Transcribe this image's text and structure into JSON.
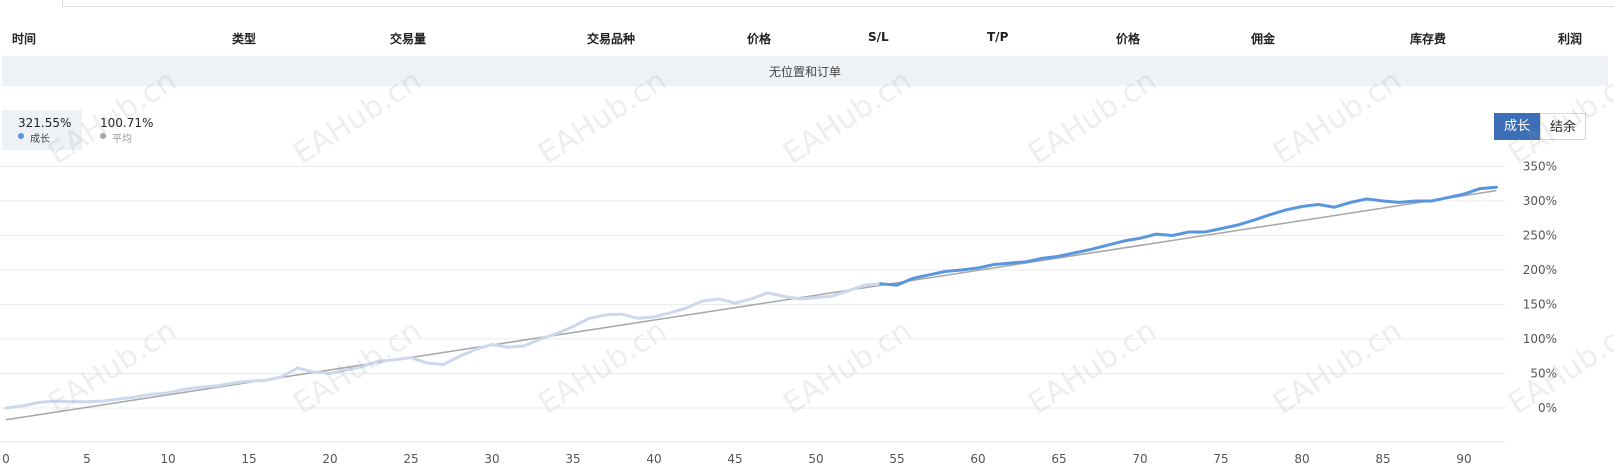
{
  "table": {
    "headers": [
      "时间",
      "类型",
      "交易量",
      "交易品种",
      "价格",
      "S/L",
      "T/P",
      "价格",
      "佣金",
      "库存费",
      "利润"
    ],
    "empty_message": "无位置和订单"
  },
  "legend": {
    "growth": {
      "value": "321.55%",
      "name": "成长",
      "color": "#5a96e0"
    },
    "average": {
      "value": "100.71%",
      "name": "平均",
      "color": "#a6a6a6"
    }
  },
  "toggles": {
    "growth": "成长",
    "balance": "结余"
  },
  "watermark": "EAHub.cn",
  "colors": {
    "growth_line": "#5a96e0",
    "growth_line_faded": "#cdd8ee",
    "trend_line": "#a6a6a6",
    "active_toggle": "#3d6fb8"
  },
  "chart_data": {
    "type": "line",
    "x_ticks": [
      0,
      5,
      10,
      15,
      20,
      25,
      30,
      35,
      40,
      45,
      50,
      55,
      60,
      65,
      70,
      75,
      80,
      85,
      90
    ],
    "y_ticks": [
      "0%",
      "50%",
      "100%",
      "150%",
      "200%",
      "250%",
      "300%",
      "350%"
    ],
    "ylim": [
      -50,
      350
    ],
    "xlim": [
      0,
      92
    ],
    "grid": "horizontal",
    "series": [
      {
        "values": [
          [
            0,
            0
          ],
          [
            1,
            3
          ],
          [
            2,
            8
          ],
          [
            3,
            10
          ],
          [
            4,
            9
          ],
          [
            5,
            9
          ],
          [
            6,
            10
          ],
          [
            7,
            13
          ],
          [
            8,
            16
          ],
          [
            9,
            20
          ],
          [
            10,
            22
          ],
          [
            11,
            27
          ],
          [
            12,
            30
          ],
          [
            13,
            32
          ],
          [
            14,
            36
          ],
          [
            15,
            39
          ],
          [
            16,
            40
          ],
          [
            17,
            45
          ],
          [
            18,
            58
          ],
          [
            19,
            52
          ],
          [
            20,
            50
          ],
          [
            21,
            55
          ],
          [
            22,
            60
          ],
          [
            23,
            68
          ],
          [
            24,
            70
          ],
          [
            25,
            73
          ],
          [
            26,
            65
          ],
          [
            27,
            63
          ],
          [
            28,
            75
          ],
          [
            29,
            85
          ],
          [
            30,
            92
          ],
          [
            31,
            88
          ],
          [
            32,
            90
          ],
          [
            33,
            100
          ],
          [
            34,
            108
          ],
          [
            35,
            118
          ],
          [
            36,
            130
          ],
          [
            37,
            135
          ],
          [
            38,
            136
          ],
          [
            39,
            130
          ],
          [
            40,
            132
          ],
          [
            41,
            138
          ],
          [
            42,
            145
          ],
          [
            43,
            155
          ],
          [
            44,
            158
          ],
          [
            45,
            152
          ],
          [
            46,
            158
          ],
          [
            47,
            167
          ],
          [
            48,
            162
          ],
          [
            49,
            158
          ],
          [
            50,
            160
          ],
          [
            51,
            162
          ],
          [
            52,
            170
          ],
          [
            53,
            178
          ],
          [
            54,
            180
          ],
          [
            55,
            178
          ],
          [
            56,
            188
          ],
          [
            57,
            193
          ],
          [
            58,
            198
          ],
          [
            59,
            200
          ],
          [
            60,
            203
          ],
          [
            61,
            208
          ],
          [
            62,
            210
          ],
          [
            63,
            212
          ],
          [
            64,
            217
          ],
          [
            65,
            220
          ],
          [
            66,
            225
          ],
          [
            67,
            230
          ],
          [
            68,
            236
          ],
          [
            69,
            242
          ],
          [
            70,
            246
          ],
          [
            71,
            252
          ],
          [
            72,
            250
          ],
          [
            73,
            255
          ],
          [
            74,
            255
          ],
          [
            75,
            260
          ],
          [
            76,
            265
          ],
          [
            77,
            272
          ],
          [
            78,
            280
          ],
          [
            79,
            287
          ],
          [
            80,
            292
          ],
          [
            81,
            295
          ],
          [
            82,
            291
          ],
          [
            83,
            298
          ],
          [
            84,
            303
          ],
          [
            85,
            300
          ],
          [
            86,
            298
          ],
          [
            87,
            300
          ],
          [
            88,
            300
          ],
          [
            89,
            305
          ],
          [
            90,
            310
          ],
          [
            91,
            318
          ],
          [
            92,
            320
          ]
        ]
      },
      {
        "values": [
          [
            0,
            -17
          ],
          [
            92,
            315
          ]
        ]
      }
    ]
  }
}
